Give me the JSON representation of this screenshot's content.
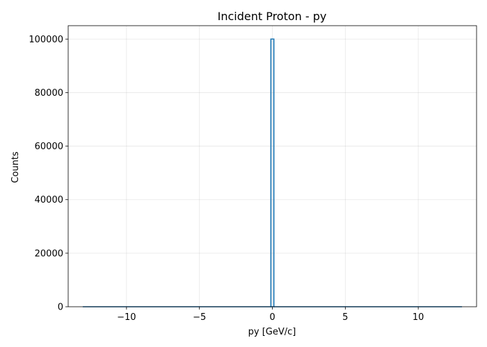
{
  "chart_data": {
    "type": "bar",
    "title": "Incident Proton - py",
    "xlabel": "py [GeV/c]",
    "ylabel": "Counts",
    "xlim": [
      -14,
      14
    ],
    "ylim": [
      0,
      105000
    ],
    "x_range": [
      -13,
      13
    ],
    "x_ticks": [
      -10,
      -5,
      0,
      5,
      10
    ],
    "x_tick_labels": [
      "−10",
      "−5",
      "0",
      "5",
      "10"
    ],
    "y_ticks": [
      0,
      20000,
      40000,
      60000,
      80000,
      100000
    ],
    "y_tick_labels": [
      "0",
      "20000",
      "40000",
      "60000",
      "80000",
      "100000"
    ],
    "grid": true,
    "histtype": "step",
    "series_color": "#1f77b4",
    "bins": [
      {
        "x0": -0.1,
        "x1": 0.1,
        "count": 100000
      }
    ]
  }
}
